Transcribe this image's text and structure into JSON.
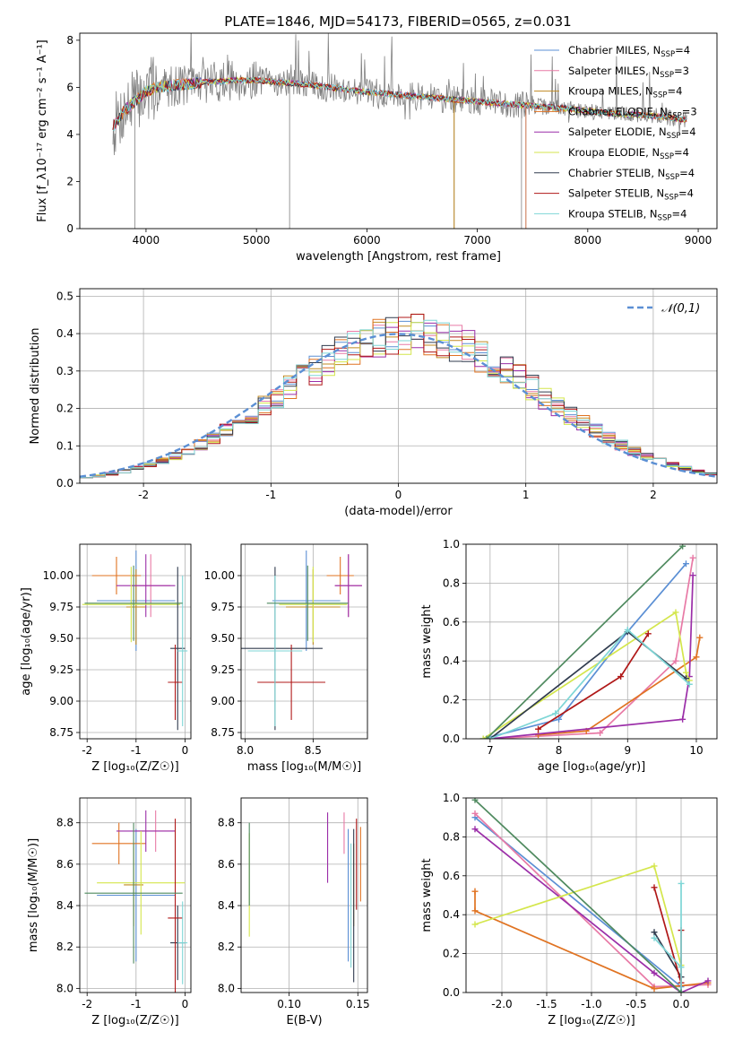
{
  "figure": {
    "title": "PLATE=1846, MJD=54173, FIBERID=0565, z=0.031"
  },
  "colors": {
    "Chabrier MILES": "#5b8fd4",
    "Salpeter MILES": "#e87aa6",
    "Kroupa MILES": "#c08a22",
    "Chabrier ELODIE": "#e07322",
    "Salpeter ELODIE": "#9b2ea8",
    "Kroupa ELODIE": "#d4e64c",
    "Chabrier STELIB": "#303b4e",
    "Salpeter STELIB": "#b01818",
    "Kroupa STELIB": "#7ed6d6",
    "data": "#808080",
    "gaussian": "#5b8fd4",
    "p3_extra": "#4f8a5f"
  },
  "chart_data": [
    {
      "type": "line",
      "xlabel": "wavelength [Angstrom, rest frame]",
      "ylabel": "Flux [f_λ10⁻¹⁷ erg cm⁻² s⁻¹ A⁻¹]",
      "xlim": [
        3400,
        9170
      ],
      "ylim": [
        0,
        8.3
      ],
      "xticks": [
        4000,
        5000,
        6000,
        7000,
        8000,
        9000
      ],
      "yticks": [
        0,
        2,
        4,
        6,
        8
      ],
      "legend_position": "top-right",
      "legend": [
        {
          "main": "Chabrier MILES, N",
          "sub": "SSP",
          "tail": "=4"
        },
        {
          "main": "Salpeter MILES, N",
          "sub": "SSP",
          "tail": "=3"
        },
        {
          "main": "Kroupa MILES, N",
          "sub": "SSP",
          "tail": "=4"
        },
        {
          "main": "Chabrier ELODIE, N",
          "sub": "SSP",
          "tail": "=3"
        },
        {
          "main": "Salpeter ELODIE, N",
          "sub": "SSP",
          "tail": "=4"
        },
        {
          "main": "Kroupa ELODIE, N",
          "sub": "SSP",
          "tail": "=4"
        },
        {
          "main": "Chabrier STELIB, N",
          "sub": "SSP",
          "tail": "=4"
        },
        {
          "main": "Salpeter STELIB, N",
          "sub": "SSP",
          "tail": "=4"
        },
        {
          "main": "Kroupa STELIB, N",
          "sub": "SSP",
          "tail": "=4"
        }
      ],
      "continuum": {
        "x": [
          3700,
          3800,
          3900,
          4000,
          4100,
          4300,
          4500,
          4800,
          5000,
          5500,
          6000,
          6500,
          7000,
          7400,
          7800,
          8200,
          8700,
          8900
        ],
        "y": [
          4.3,
          5.0,
          5.4,
          5.8,
          6.0,
          6.1,
          6.2,
          6.3,
          6.3,
          6.1,
          5.8,
          5.6,
          5.4,
          5.25,
          5.1,
          4.9,
          4.75,
          4.6
        ]
      }
    },
    {
      "type": "bar",
      "xlabel": "(data-model)/error",
      "ylabel": "Normed distribution",
      "xlim": [
        -2.5,
        2.5
      ],
      "ylim": [
        0,
        0.52
      ],
      "xticks": [
        -2,
        -1,
        0,
        1,
        2
      ],
      "yticks": [
        0.0,
        0.1,
        0.2,
        0.3,
        0.4,
        0.5
      ],
      "legend": "𝒩(0,1)",
      "legend_position": "top-right",
      "gaussian": {
        "mu": 0,
        "sigma": 1
      },
      "bin_width": 0.1,
      "grid": true
    },
    {
      "type": "scatter",
      "xlabel": "Z [log₁₀(Z/Z☉)]",
      "ylabel": "age  [log₁₀(age/yr)]",
      "xlim": [
        -2.15,
        0.12
      ],
      "ylim": [
        8.7,
        10.25
      ],
      "xticks": [
        -2,
        -1,
        0
      ],
      "yticks": [
        8.75,
        9.0,
        9.25,
        9.5,
        9.75,
        10.0
      ],
      "points": [
        {
          "model": "Chabrier MILES",
          "x": -1.0,
          "xerr": 0.8,
          "y": 9.8,
          "yerr": 0.4
        },
        {
          "model": "Salpeter MILES",
          "x": -0.7,
          "xerr": 0.4,
          "y": 9.92,
          "yerr": 0.25
        },
        {
          "model": "Kroupa MILES",
          "x": -1.0,
          "xerr": 0.2,
          "y": 9.75,
          "yerr": 0.3
        },
        {
          "model": "Chabrier ELODIE",
          "x": -1.4,
          "xerr": 0.5,
          "y": 10.0,
          "yerr": 0.15
        },
        {
          "model": "Salpeter ELODIE",
          "x": -0.8,
          "xerr": 0.6,
          "y": 9.92,
          "yerr": 0.25
        },
        {
          "model": "Kroupa ELODIE",
          "x": -1.1,
          "xerr": 1.0,
          "y": 9.77,
          "yerr": 0.3
        },
        {
          "model": "Chabrier STELIB",
          "x": -0.15,
          "xerr": 0.15,
          "y": 9.42,
          "yerr": 0.65
        },
        {
          "model": "Salpeter STELIB",
          "x": -0.2,
          "xerr": 0.15,
          "y": 9.15,
          "yerr": 0.3
        },
        {
          "model": "Kroupa STELIB",
          "x": -0.05,
          "xerr": 0.1,
          "y": 9.4,
          "yerr": 0.6
        },
        {
          "model": "p3_extra",
          "x": -1.05,
          "xerr": 1.0,
          "y": 9.78,
          "yerr": 0.3
        }
      ]
    },
    {
      "type": "scatter",
      "xlabel": "mass [log₁₀(M/M☉)]",
      "ylabel": "",
      "xlim": [
        7.97,
        8.9
      ],
      "ylim": [
        8.7,
        10.25
      ],
      "xticks": [
        8.0,
        8.5
      ],
      "yticks": [
        8.75,
        9.0,
        9.25,
        9.5,
        9.75,
        10.0
      ],
      "points": [
        {
          "model": "Chabrier MILES",
          "x": 8.45,
          "xerr": 0.25,
          "y": 9.8,
          "yerr": 0.4
        },
        {
          "model": "Salpeter MILES",
          "x": 8.76,
          "xerr": 0.1,
          "y": 9.92,
          "yerr": 0.25
        },
        {
          "model": "Kroupa MILES",
          "x": 8.5,
          "xerr": 0.2,
          "y": 9.75,
          "yerr": 0.3
        },
        {
          "model": "Chabrier ELODIE",
          "x": 8.7,
          "xerr": 0.1,
          "y": 10.0,
          "yerr": 0.15
        },
        {
          "model": "Salpeter ELODIE",
          "x": 8.76,
          "xerr": 0.1,
          "y": 9.92,
          "yerr": 0.25
        },
        {
          "model": "Kroupa ELODIE",
          "x": 8.5,
          "xerr": 0.25,
          "y": 9.77,
          "yerr": 0.3
        },
        {
          "model": "Chabrier STELIB",
          "x": 8.22,
          "xerr": 0.35,
          "y": 9.42,
          "yerr": 0.65
        },
        {
          "model": "Salpeter STELIB",
          "x": 8.34,
          "xerr": 0.25,
          "y": 9.15,
          "yerr": 0.3
        },
        {
          "model": "Kroupa STELIB",
          "x": 8.22,
          "xerr": 0.2,
          "y": 9.4,
          "yerr": 0.6
        },
        {
          "model": "p3_extra",
          "x": 8.46,
          "xerr": 0.3,
          "y": 9.78,
          "yerr": 0.3
        }
      ]
    },
    {
      "type": "line",
      "xlabel": "age  [log₁₀(age/yr)]",
      "ylabel": "mass weight",
      "xlim": [
        6.65,
        10.3
      ],
      "ylim": [
        0,
        1.0
      ],
      "xticks": [
        7,
        8,
        9,
        10
      ],
      "yticks": [
        0.0,
        0.2,
        0.4,
        0.6,
        0.8,
        1.0
      ],
      "grid": true,
      "series": [
        {
          "model": "Chabrier MILES",
          "x": [
            6.9,
            8.0,
            9.0,
            9.85
          ],
          "y": [
            0.0,
            0.1,
            0.55,
            0.9
          ]
        },
        {
          "model": "Salpeter MILES",
          "x": [
            7.0,
            8.6,
            9.7,
            9.95
          ],
          "y": [
            0.0,
            0.03,
            0.4,
            0.93
          ]
        },
        {
          "model": "Chabrier ELODIE",
          "x": [
            7.7,
            8.4,
            10.0,
            10.05
          ],
          "y": [
            0.02,
            0.04,
            0.42,
            0.52
          ]
        },
        {
          "model": "Salpeter ELODIE",
          "x": [
            7.0,
            9.8,
            9.9,
            9.95
          ],
          "y": [
            0.0,
            0.1,
            0.32,
            0.84
          ]
        },
        {
          "model": "Kroupa ELODIE",
          "x": [
            6.9,
            9.7,
            9.85,
            9.9
          ],
          "y": [
            0.0,
            0.65,
            0.34,
            0.3
          ]
        },
        {
          "model": "Chabrier STELIB",
          "x": [
            7.0,
            9.0,
            9.85
          ],
          "y": [
            0.0,
            0.55,
            0.31
          ]
        },
        {
          "model": "Salpeter STELIB",
          "x": [
            7.7,
            8.9,
            9.3
          ],
          "y": [
            0.05,
            0.32,
            0.54
          ]
        },
        {
          "model": "Kroupa STELIB",
          "x": [
            7.0,
            7.95,
            9.0,
            9.9
          ],
          "y": [
            0.0,
            0.13,
            0.56,
            0.28
          ]
        },
        {
          "model": "p3_extra",
          "x": [
            6.95,
            9.8
          ],
          "y": [
            0.0,
            0.99
          ]
        }
      ]
    },
    {
      "type": "scatter",
      "xlabel": "Z [log₁₀(Z/Z☉)]",
      "ylabel": "mass [log₁₀(M/M☉)]",
      "xlim": [
        -2.15,
        0.12
      ],
      "ylim": [
        7.98,
        8.92
      ],
      "xticks": [
        -2,
        -1,
        0
      ],
      "yticks": [
        8.0,
        8.2,
        8.4,
        8.6,
        8.8
      ],
      "points": [
        {
          "model": "Chabrier MILES",
          "x": -1.0,
          "xerr": 0.8,
          "y": 8.45,
          "yerr": 0.32
        },
        {
          "model": "Salpeter MILES",
          "x": -0.6,
          "xerr": 0.4,
          "y": 8.76,
          "yerr": 0.1
        },
        {
          "model": "Kroupa MILES",
          "x": -1.05,
          "xerr": 0.2,
          "y": 8.5,
          "yerr": 0.2
        },
        {
          "model": "Chabrier ELODIE",
          "x": -1.35,
          "xerr": 0.55,
          "y": 8.7,
          "yerr": 0.1
        },
        {
          "model": "Salpeter ELODIE",
          "x": -0.8,
          "xerr": 0.6,
          "y": 8.76,
          "yerr": 0.1
        },
        {
          "model": "Kroupa ELODIE",
          "x": -0.9,
          "xerr": 0.9,
          "y": 8.51,
          "yerr": 0.25
        },
        {
          "model": "Chabrier STELIB",
          "x": -0.15,
          "xerr": 0.15,
          "y": 8.22,
          "yerr": 0.18
        },
        {
          "model": "Salpeter STELIB",
          "x": -0.2,
          "xerr": 0.15,
          "y": 8.34,
          "yerr": 0.48
        },
        {
          "model": "Kroupa STELIB",
          "x": -0.05,
          "xerr": 0.1,
          "y": 8.22,
          "yerr": 0.2
        },
        {
          "model": "p3_extra",
          "x": -1.05,
          "xerr": 1.0,
          "y": 8.46,
          "yerr": 0.34
        }
      ]
    },
    {
      "type": "scatter",
      "xlabel": "E(B-V)",
      "ylabel": "",
      "xlim": [
        0.065,
        0.157
      ],
      "ylim": [
        7.98,
        8.92
      ],
      "xticks": [
        0.1,
        0.15
      ],
      "yticks": [
        8.0,
        8.2,
        8.4,
        8.6,
        8.8
      ],
      "points": [
        {
          "model": "Chabrier MILES",
          "x": 0.143,
          "xerr": 0.0,
          "y": 8.45,
          "yerr": 0.32
        },
        {
          "model": "Salpeter MILES",
          "x": 0.14,
          "xerr": 0.0,
          "y": 8.75,
          "yerr": 0.1
        },
        {
          "model": "Kroupa MILES",
          "x": 0.147,
          "xerr": 0.0,
          "y": 8.5,
          "yerr": 0.2
        },
        {
          "model": "Chabrier ELODIE",
          "x": 0.152,
          "xerr": 0.0,
          "y": 8.6,
          "yerr": 0.18
        },
        {
          "model": "Salpeter ELODIE",
          "x": 0.128,
          "xerr": 0.0,
          "y": 8.68,
          "yerr": 0.17
        },
        {
          "model": "Kroupa ELODIE",
          "x": 0.071,
          "xerr": 0.0,
          "y": 8.5,
          "yerr": 0.25
        },
        {
          "model": "Chabrier STELIB",
          "x": 0.147,
          "xerr": 0.0,
          "y": 8.4,
          "yerr": 0.37
        },
        {
          "model": "Salpeter STELIB",
          "x": 0.149,
          "xerr": 0.0,
          "y": 8.6,
          "yerr": 0.22
        },
        {
          "model": "Kroupa STELIB",
          "x": 0.145,
          "xerr": 0.0,
          "y": 8.4,
          "yerr": 0.3
        },
        {
          "model": "p3_extra",
          "x": 0.071,
          "xerr": 0.0,
          "y": 8.6,
          "yerr": 0.2
        }
      ]
    },
    {
      "type": "line",
      "xlabel": "Z [log₁₀(Z/Z☉)]",
      "ylabel": "mass weight",
      "xlim": [
        -2.4,
        0.4
      ],
      "ylim": [
        0,
        1.0
      ],
      "xticks": [
        -2.0,
        -1.5,
        -1.0,
        -0.5,
        0.0
      ],
      "yticks": [
        0.0,
        0.2,
        0.4,
        0.6,
        0.8,
        1.0
      ],
      "grid": true,
      "series": [
        {
          "model": "Chabrier MILES",
          "x": [
            -2.3,
            0.0,
            0.0
          ],
          "y": [
            0.9,
            0.03,
            0.0
          ]
        },
        {
          "model": "Salpeter MILES",
          "x": [
            -2.3,
            -0.3,
            0.3
          ],
          "y": [
            0.92,
            0.03,
            0.04
          ]
        },
        {
          "model": "Chabrier ELODIE",
          "x": [
            -2.3,
            -2.3,
            -0.3,
            0.3
          ],
          "y": [
            0.52,
            0.42,
            0.02,
            0.05
          ]
        },
        {
          "model": "Salpeter ELODIE",
          "x": [
            -2.3,
            -0.3,
            0.0,
            0.3
          ],
          "y": [
            0.84,
            0.1,
            0.0,
            0.06
          ]
        },
        {
          "model": "Kroupa ELODIE",
          "x": [
            -2.3,
            -0.3,
            0.0
          ],
          "y": [
            0.35,
            0.65,
            0.14
          ]
        },
        {
          "model": "Chabrier STELIB",
          "x": [
            -0.3,
            0.0,
            0.0
          ],
          "y": [
            0.31,
            0.08,
            0.0
          ]
        },
        {
          "model": "Salpeter STELIB",
          "x": [
            -0.3,
            0.0,
            0.0
          ],
          "y": [
            0.54,
            0.05,
            0.32
          ]
        },
        {
          "model": "Kroupa STELIB",
          "x": [
            -0.3,
            0.0,
            0.0,
            0.0
          ],
          "y": [
            0.28,
            0.13,
            0.56,
            0.0
          ]
        },
        {
          "model": "p3_extra",
          "x": [
            -2.3,
            0.0
          ],
          "y": [
            0.99,
            0.0
          ]
        }
      ]
    }
  ]
}
